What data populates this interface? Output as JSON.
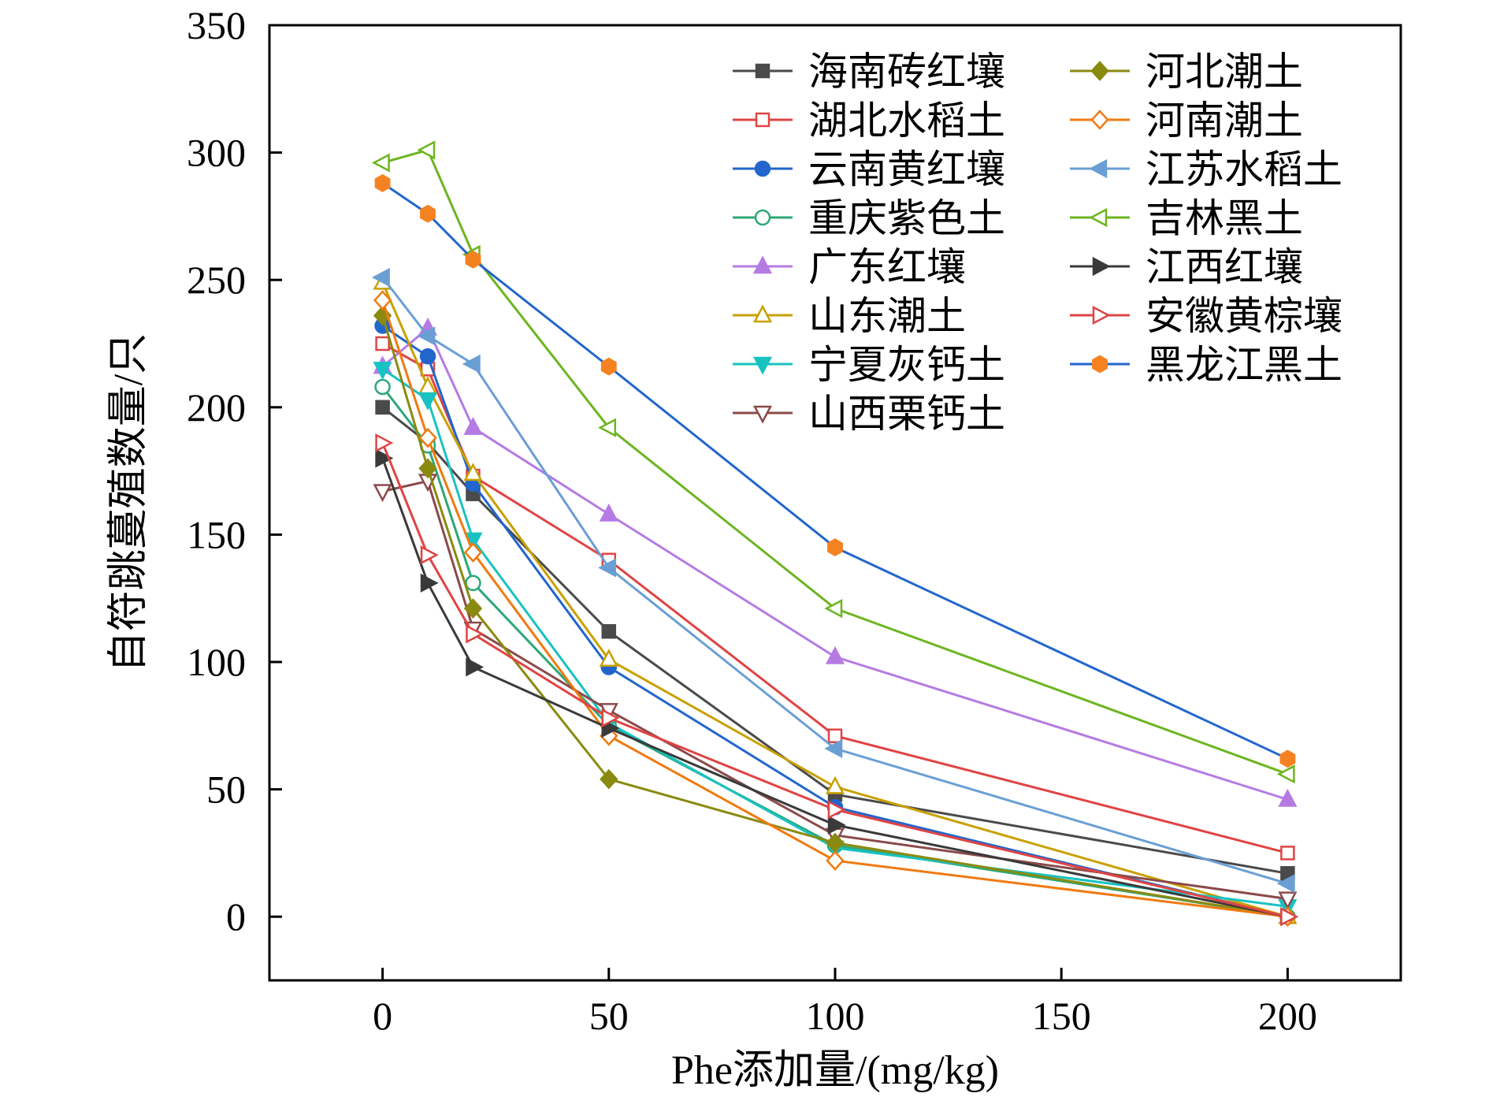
{
  "chart_data": {
    "type": "line",
    "title": "",
    "xlabel": "Phe添加量/(mg/kg)",
    "ylabel": "自符跳蔓殖数量/只",
    "x": [
      0,
      10,
      20,
      50,
      100,
      200
    ],
    "xlim": [
      -25,
      225
    ],
    "ylim": [
      -25,
      350
    ],
    "xticks": [
      0,
      50,
      100,
      150,
      200
    ],
    "yticks": [
      0,
      50,
      100,
      150,
      200,
      250,
      300,
      350
    ],
    "grid": false,
    "legend_position": "top-right",
    "series": [
      {
        "name": "海南砖红壤",
        "color": "#4a4a4a",
        "marker": "square-filled",
        "values": [
          200,
          186,
          166,
          112,
          48,
          17
        ]
      },
      {
        "name": "湖北水稻土",
        "color": "#e04444",
        "marker": "square-open",
        "values": [
          225,
          215,
          173,
          140,
          71,
          25
        ]
      },
      {
        "name": "云南黄红壤",
        "color": "#2266cc",
        "marker": "circle-filled",
        "values": [
          232,
          220,
          170,
          98,
          43,
          0
        ]
      },
      {
        "name": "重庆紫色土",
        "color": "#2ca877",
        "marker": "circle-open",
        "values": [
          208,
          185,
          131,
          75,
          28,
          0
        ]
      },
      {
        "name": "广东红壤",
        "color": "#b57be3",
        "marker": "triangle-up-filled",
        "values": [
          216,
          231,
          192,
          158,
          102,
          46
        ]
      },
      {
        "name": "山东潮土",
        "color": "#c9a000",
        "marker": "triangle-up-open",
        "values": [
          249,
          208,
          174,
          101,
          51,
          0
        ]
      },
      {
        "name": "宁夏灰钙土",
        "color": "#19c2c2",
        "marker": "triangle-down-filled",
        "values": [
          215,
          203,
          148,
          76,
          27,
          4
        ]
      },
      {
        "name": "山西栗钙土",
        "color": "#8b4a4a",
        "marker": "triangle-down-open",
        "values": [
          167,
          171,
          113,
          81,
          32,
          7
        ]
      },
      {
        "name": "河北潮土",
        "color": "#8a8a10",
        "marker": "diamond-filled",
        "values": [
          236,
          176,
          121,
          54,
          29,
          0
        ]
      },
      {
        "name": "河南潮土",
        "color": "#f07a10",
        "marker": "diamond-open",
        "values": [
          242,
          188,
          143,
          71,
          22,
          0
        ]
      },
      {
        "name": "江苏水稻土",
        "color": "#6a9fd4",
        "marker": "triangle-left-filled",
        "values": [
          251,
          228,
          217,
          137,
          66,
          13
        ]
      },
      {
        "name": "吉林黑土",
        "color": "#6cb520",
        "marker": "triangle-left-open",
        "values": [
          296,
          301,
          260,
          192,
          121,
          56
        ]
      },
      {
        "name": "江西红壤",
        "color": "#3a3a3a",
        "marker": "triangle-right-filled",
        "values": [
          180,
          131,
          98,
          74,
          36,
          0
        ]
      },
      {
        "name": "安徽黄棕壤",
        "color": "#e04444",
        "marker": "triangle-right-open",
        "values": [
          186,
          142,
          111,
          78,
          42,
          0
        ]
      },
      {
        "name": "黑龙江黑土",
        "color": "#2266cc",
        "marker": "hexagon-filled",
        "marker_color": "#f58220",
        "values": [
          288,
          276,
          258,
          216,
          145,
          62
        ]
      }
    ]
  }
}
